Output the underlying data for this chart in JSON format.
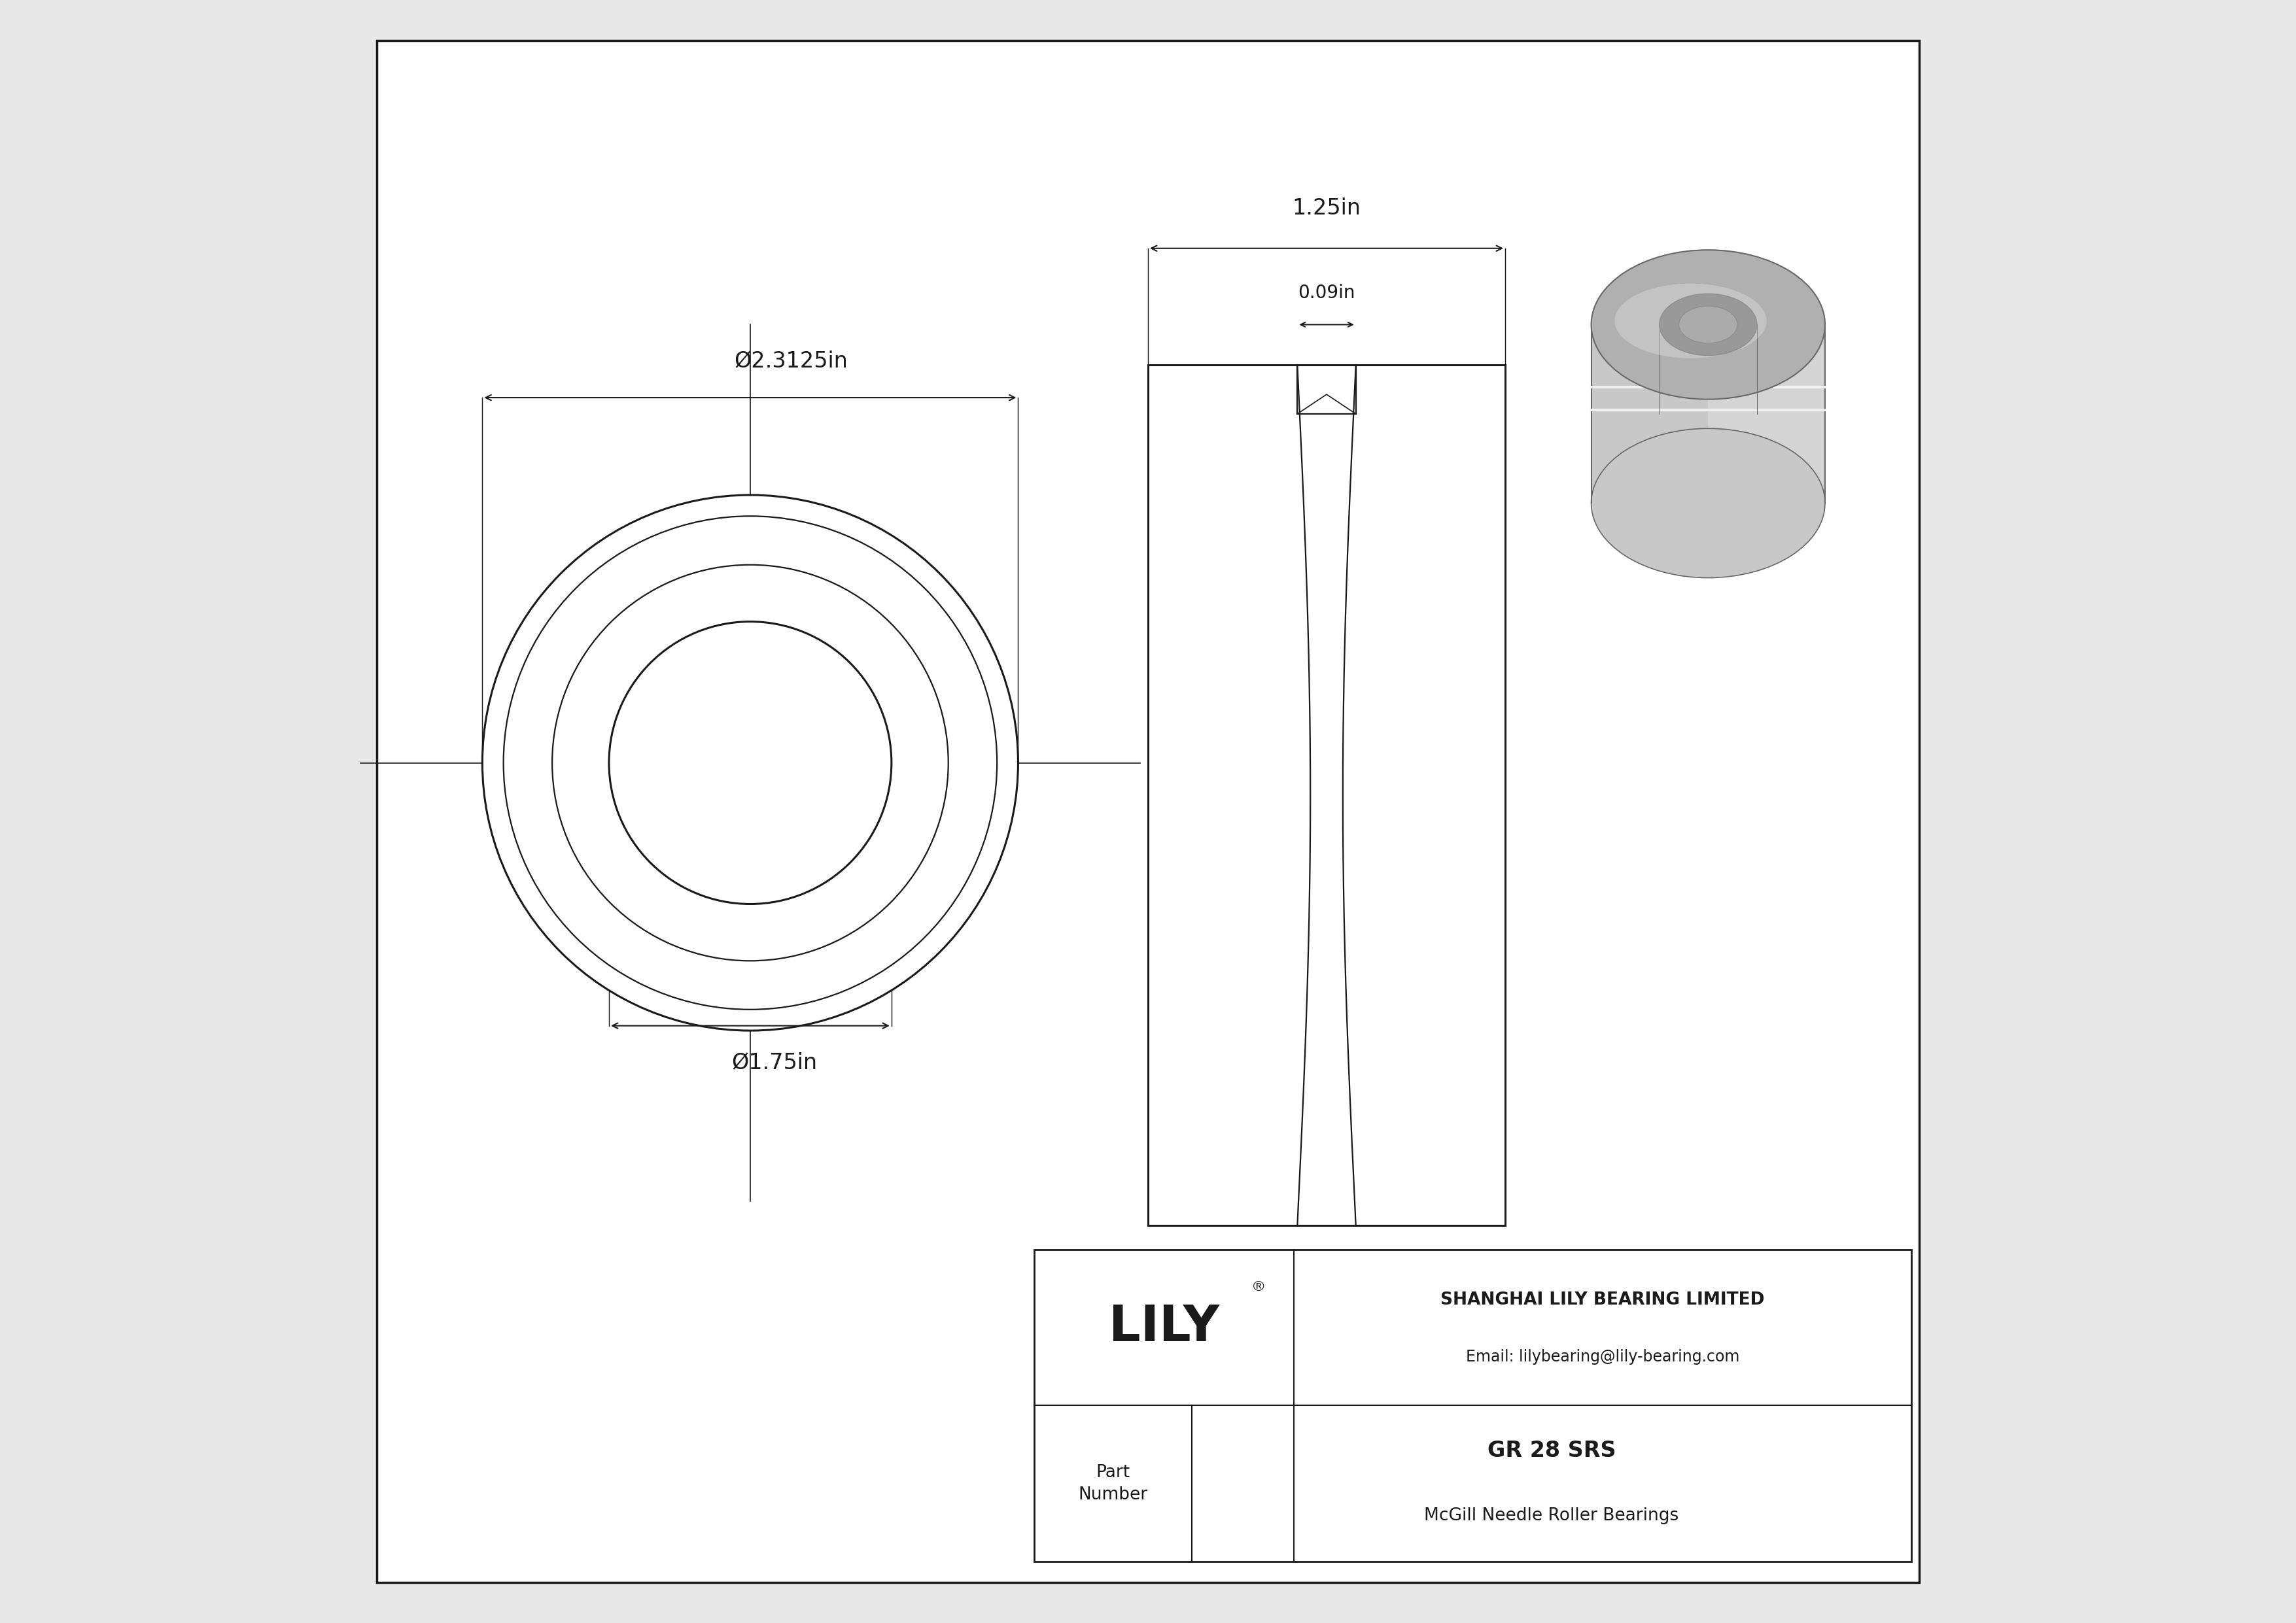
{
  "bg_color": "#e8e8e8",
  "draw_bg": "#ffffff",
  "line_color": "#1a1a1a",
  "title": "GR 28 SRS",
  "subtitle": "McGill Needle Roller Bearings",
  "company": "SHANGHAI LILY BEARING LIMITED",
  "email": "Email: lilybearing@lily-bearing.com",
  "part_label": "Part\nNumber",
  "logo": "LILY",
  "logo_reg": "®",
  "dim_outer": "Ø2.3125in",
  "dim_inner": "Ø1.75in",
  "dim_width": "1.25in",
  "dim_groove": "0.09in",
  "gray1": "#aaaaaa",
  "gray2": "#b8b8b8",
  "gray3": "#cccccc",
  "gray4": "#d8d8d8",
  "gray5": "#e4e4e4",
  "gray_dark": "#808080",
  "gray_bore": "#909090"
}
